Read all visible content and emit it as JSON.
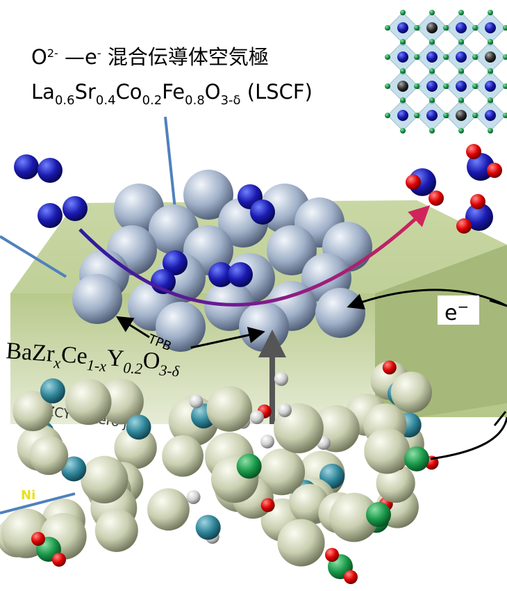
{
  "cathode_label": {
    "parts": [
      {
        "text": "O",
        "sup": "2-"
      },
      {
        "text": " —e",
        "sup": "-"
      },
      {
        "text": " 混合伝導体空気極"
      }
    ]
  },
  "cathode_formula": {
    "parts": [
      {
        "text": "La",
        "sub": "0.6"
      },
      {
        "text": "Sr",
        "sub": "0.4"
      },
      {
        "text": "Co",
        "sub": "0.2"
      },
      {
        "text": "Fe",
        "sub": "0.8"
      },
      {
        "text": "O",
        "sub": "3-δ"
      },
      {
        "text": " (LSCF)"
      }
    ]
  },
  "tpb_label": "TPB",
  "electrolyte_formula": {
    "parts": [
      {
        "text": "BaZr",
        "sub": "x"
      },
      {
        "text": "Ce",
        "sub": "1-x"
      },
      {
        "text": "Y",
        "sub": "0.2"
      },
      {
        "text": "O",
        "sub": "3-δ"
      }
    ]
  },
  "junction_label": "Pd/BZCY Hetero jun",
  "anode_label": "Ni",
  "electron_label": {
    "parts": [
      {
        "text": "e",
        "sup": "−"
      }
    ]
  }
}
